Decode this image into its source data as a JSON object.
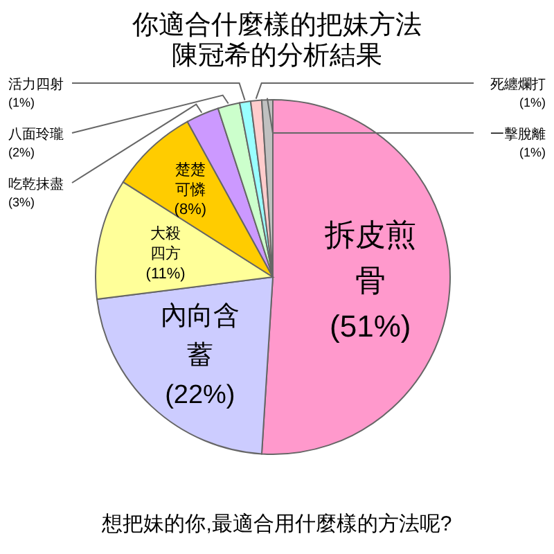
{
  "chart_data": {
    "type": "pie",
    "title": "你適合什麼樣的把妹方法",
    "subtitle": "陳冠希的分析結果",
    "categories": [
      "拆皮煎骨",
      "內向含蓄",
      "大殺四方",
      "楚楚可憐",
      "吃乾抹盡",
      "八面玲瓏",
      "活力四射",
      "死纏爛打",
      "一擊脫離"
    ],
    "values": [
      51,
      22,
      11,
      8,
      3,
      2,
      1,
      1,
      1
    ],
    "value_labels": [
      "(51%)",
      "(22%)",
      "(11%)",
      "(8%)",
      "(3%)",
      "(2%)",
      "(1%)",
      "(1%)",
      "(1%)"
    ],
    "colors": [
      "#ff99cc",
      "#ccccff",
      "#ffff99",
      "#ffcc00",
      "#cc99ff",
      "#ccffcc",
      "#99ffff",
      "#ffcccc",
      "#c0c0c0"
    ],
    "annotations": [
      "想把妹的你,最適合用什麼樣的方法呢?"
    ]
  }
}
